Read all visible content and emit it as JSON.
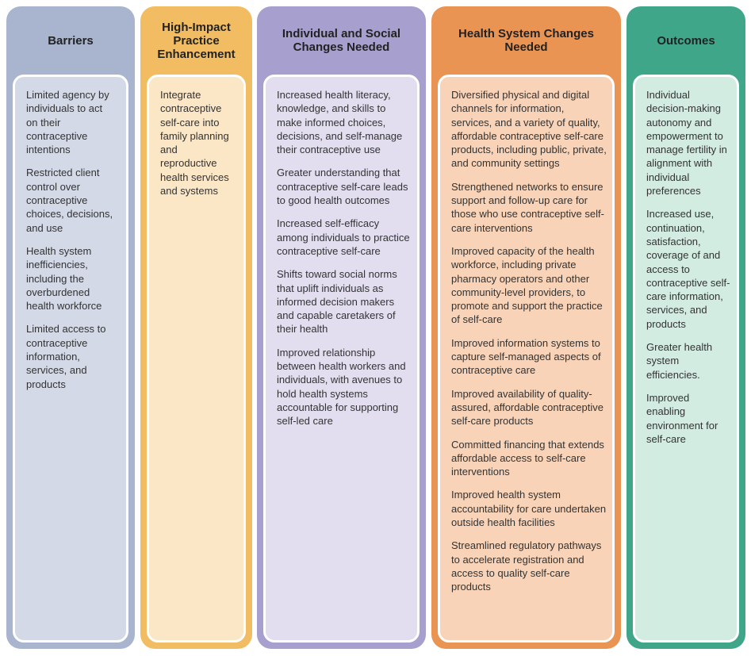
{
  "columns": [
    {
      "title": "Barriers",
      "items": [
        "Limited agency by individuals to act on their contraceptive intentions",
        "Restricted client control over contraceptive choices, decisions, and use",
        "Health system inefficiencies, including the overburdened health workforce",
        "Limited access to contraceptive information, services, and products"
      ]
    },
    {
      "title": "High-Impact Practice Enhancement",
      "items": [
        "Integrate contraceptive self-care into family planning and reproductive health services and systems"
      ]
    },
    {
      "title": "Individual and Social Changes Needed",
      "items": [
        "Increased health literacy, knowledge, and skills to make informed choices, decisions, and self-manage their contraceptive use",
        "Greater understanding that contraceptive self-care leads to good health outcomes",
        "Increased self-efficacy among individuals to practice contraceptive self-care",
        "Shifts toward social norms that uplift individuals as informed decision makers and capable caretakers of their health",
        "Improved relationship between health workers and individuals, with avenues to hold health systems accountable for supporting self-led care"
      ]
    },
    {
      "title": "Health System Changes Needed",
      "items": [
        "Diversified physical and digital channels for information, services, and a variety of quality, affordable contraceptive self-care products, including public, private, and community settings",
        "Strengthened networks to ensure support and follow-up care for those who use contraceptive self-care interventions",
        "Improved capacity of the health workforce, including private pharmacy operators and other community-level providers, to promote and support the practice of self-care",
        "Improved information systems to capture self-managed aspects of contraceptive care",
        "Improved availability of quality-assured, affordable contraceptive self-care products",
        "Committed financing that extends affordable access to self-care interventions",
        "Improved health system accountability for care undertaken outside health facilities",
        "Streamlined regulatory pathways to accelerate registration and access to quality self-care products"
      ]
    },
    {
      "title": "Outcomes",
      "items": [
        "Individual decision-making autonomy and empowerment to manage fertility in alignment with individual preferences",
        "Increased use, continuation, satisfaction, coverage of and access to contraceptive self-care information, services, and products",
        "Greater health system efficiencies.",
        "Improved enabling environment for self-care"
      ]
    }
  ]
}
